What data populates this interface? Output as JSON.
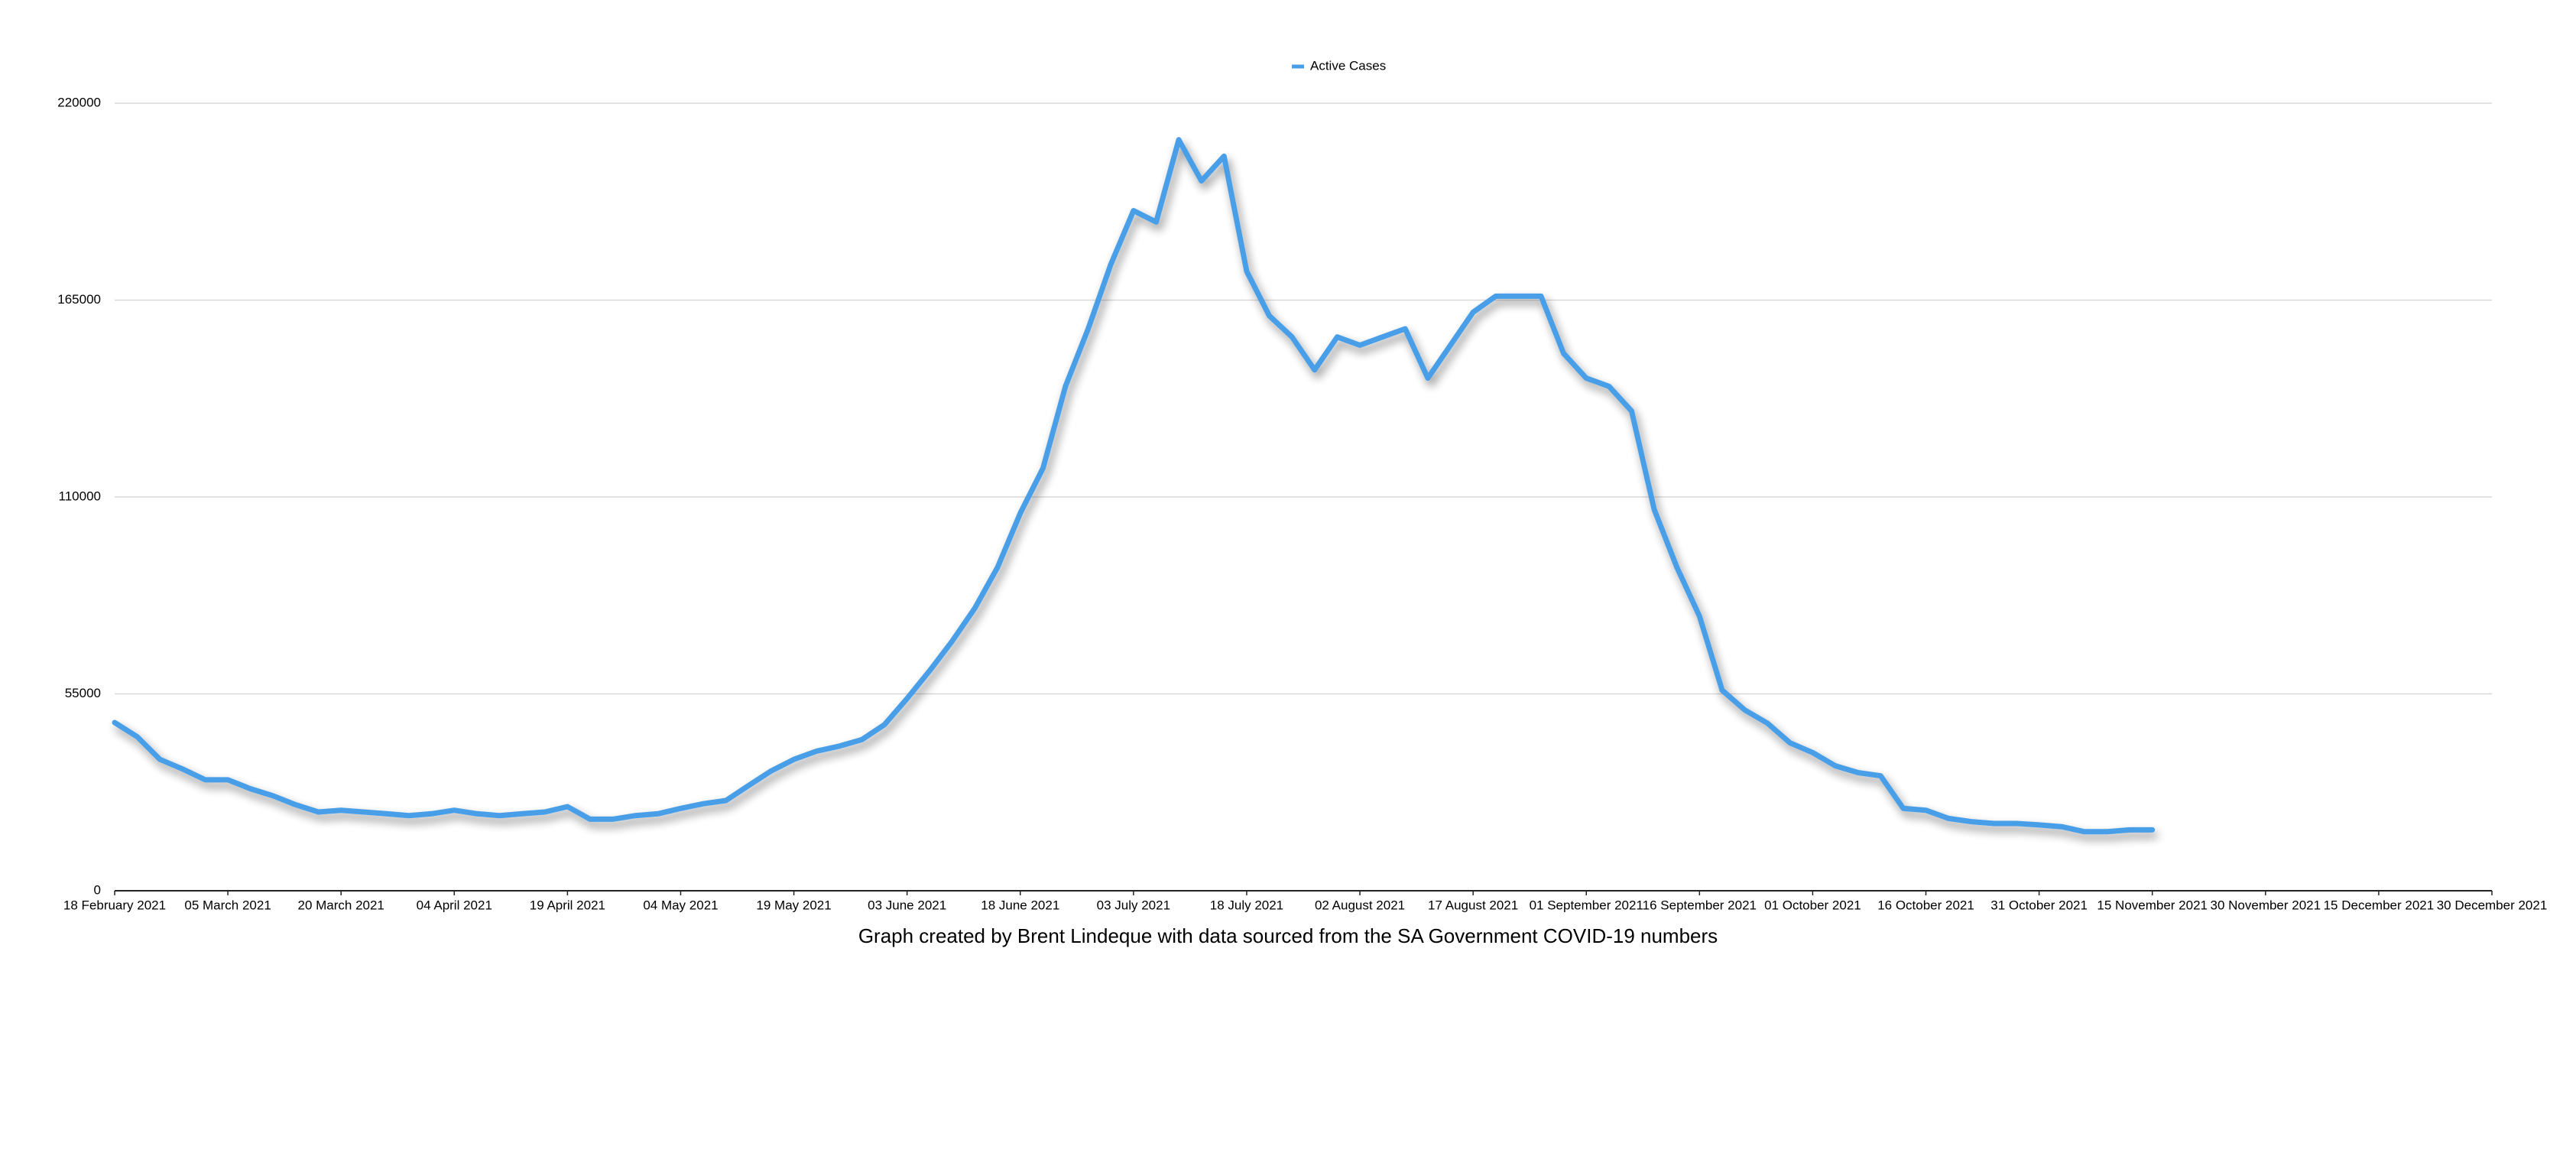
{
  "chart_data": {
    "type": "line",
    "caption": "Graph created by Brent Lindeque with data sourced from the SA Government COVID-19 numbers",
    "x": [
      "2021-02-18",
      "2021-02-21",
      "2021-02-24",
      "2021-02-27",
      "2021-03-02",
      "2021-03-05",
      "2021-03-08",
      "2021-03-11",
      "2021-03-14",
      "2021-03-17",
      "2021-03-20",
      "2021-03-23",
      "2021-03-26",
      "2021-03-29",
      "2021-04-01",
      "2021-04-04",
      "2021-04-07",
      "2021-04-10",
      "2021-04-13",
      "2021-04-16",
      "2021-04-19",
      "2021-04-22",
      "2021-04-25",
      "2021-04-28",
      "2021-05-01",
      "2021-05-04",
      "2021-05-07",
      "2021-05-10",
      "2021-05-13",
      "2021-05-16",
      "2021-05-19",
      "2021-05-22",
      "2021-05-25",
      "2021-05-28",
      "2021-05-31",
      "2021-06-03",
      "2021-06-06",
      "2021-06-09",
      "2021-06-12",
      "2021-06-15",
      "2021-06-18",
      "2021-06-21",
      "2021-06-24",
      "2021-06-27",
      "2021-06-30",
      "2021-07-03",
      "2021-07-06",
      "2021-07-09",
      "2021-07-12",
      "2021-07-15",
      "2021-07-18",
      "2021-07-21",
      "2021-07-24",
      "2021-07-27",
      "2021-07-30",
      "2021-08-02",
      "2021-08-05",
      "2021-08-08",
      "2021-08-11",
      "2021-08-14",
      "2021-08-17",
      "2021-08-20",
      "2021-08-23",
      "2021-08-26",
      "2021-08-29",
      "2021-09-01",
      "2021-09-04",
      "2021-09-07",
      "2021-09-10",
      "2021-09-13",
      "2021-09-16",
      "2021-09-19",
      "2021-09-22",
      "2021-09-25",
      "2021-09-28",
      "2021-10-01",
      "2021-10-04",
      "2021-10-07",
      "2021-10-10",
      "2021-10-13",
      "2021-10-16",
      "2021-10-19",
      "2021-10-22",
      "2021-10-25",
      "2021-10-28",
      "2021-10-31",
      "2021-11-03",
      "2021-11-06",
      "2021-11-09",
      "2021-11-12",
      "2021-11-15"
    ],
    "series": [
      {
        "name": "Active Cases",
        "color": "#4a9ee8",
        "values": [
          47000,
          43000,
          36700,
          34000,
          31000,
          31000,
          28500,
          26500,
          24000,
          22000,
          22500,
          22000,
          21500,
          21000,
          21500,
          22500,
          21500,
          21000,
          21500,
          22000,
          23500,
          20000,
          20000,
          21000,
          21500,
          23000,
          24300,
          25200,
          29400,
          33500,
          36700,
          39000,
          40400,
          42200,
          46400,
          53700,
          61500,
          69800,
          79000,
          90400,
          105500,
          118000,
          141000,
          157000,
          175000,
          190000,
          186800,
          209800,
          198300,
          205200,
          173000,
          160600,
          154700,
          145500,
          154700,
          152400,
          154700,
          157000,
          143200,
          152400,
          161600,
          166100,
          166100,
          166100,
          150100,
          143200,
          140900,
          134000,
          106500,
          90400,
          76700,
          56000,
          50500,
          46800,
          41300,
          38600,
          34900,
          33000,
          32100,
          23000,
          22500,
          20200,
          19300,
          18800,
          18800,
          18400,
          17900,
          16500,
          16500,
          17000,
          17000
        ]
      }
    ],
    "xlim": [
      "2021-02-18",
      "2021-12-30"
    ],
    "xticks": [
      {
        "value": "2021-02-18",
        "label": "18 February 2021"
      },
      {
        "value": "2021-03-05",
        "label": "05 March 2021"
      },
      {
        "value": "2021-03-20",
        "label": "20 March 2021"
      },
      {
        "value": "2021-04-04",
        "label": "04 April 2021"
      },
      {
        "value": "2021-04-19",
        "label": "19 April 2021"
      },
      {
        "value": "2021-05-04",
        "label": "04 May 2021"
      },
      {
        "value": "2021-05-19",
        "label": "19 May 2021"
      },
      {
        "value": "2021-06-03",
        "label": "03 June 2021"
      },
      {
        "value": "2021-06-18",
        "label": "18 June 2021"
      },
      {
        "value": "2021-07-03",
        "label": "03 July 2021"
      },
      {
        "value": "2021-07-18",
        "label": "18 July 2021"
      },
      {
        "value": "2021-08-02",
        "label": "02 August 2021"
      },
      {
        "value": "2021-08-17",
        "label": "17 August 2021"
      },
      {
        "value": "2021-09-01",
        "label": "01 September 2021"
      },
      {
        "value": "2021-09-16",
        "label": "16 September 2021"
      },
      {
        "value": "2021-10-01",
        "label": "01 October 2021"
      },
      {
        "value": "2021-10-16",
        "label": "16 October 2021"
      },
      {
        "value": "2021-10-31",
        "label": "31 October 2021"
      },
      {
        "value": "2021-11-15",
        "label": "15 November 2021"
      },
      {
        "value": "2021-11-30",
        "label": "30 November 2021"
      },
      {
        "value": "2021-12-15",
        "label": "15 December 2021"
      },
      {
        "value": "2021-12-30",
        "label": "30 December 2021"
      }
    ],
    "ylim": [
      0,
      220000
    ],
    "yticks": [
      0,
      55000,
      110000,
      165000,
      220000
    ],
    "grid": true,
    "legend": "top"
  }
}
